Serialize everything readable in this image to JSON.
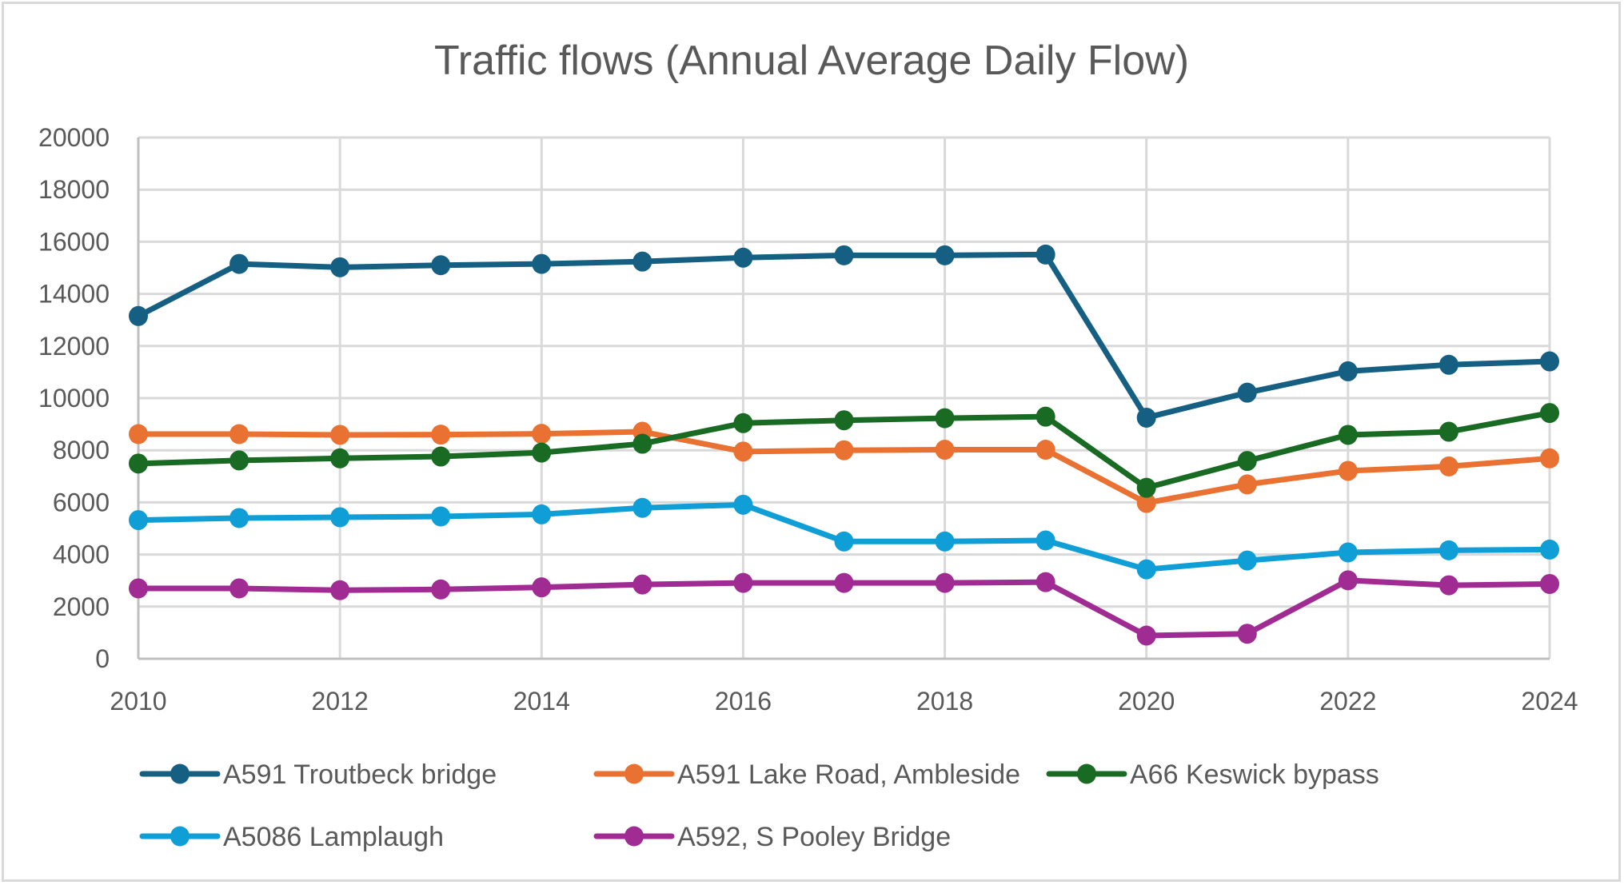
{
  "chart_data": {
    "type": "line",
    "title": "Traffic flows (Annual Average Daily Flow)",
    "xlabel": "",
    "ylabel": "",
    "x": [
      2010,
      2011,
      2012,
      2013,
      2014,
      2015,
      2016,
      2017,
      2018,
      2019,
      2020,
      2021,
      2022,
      2023,
      2024
    ],
    "xlim": [
      2010,
      2024
    ],
    "x_ticks": [
      "2010",
      "2012",
      "2014",
      "2016",
      "2018",
      "2020",
      "2022",
      "2024"
    ],
    "x_tick_values": [
      2010,
      2012,
      2014,
      2016,
      2018,
      2020,
      2022,
      2024
    ],
    "ylim": [
      0,
      20000
    ],
    "y_ticks": [
      "0",
      "2000",
      "4000",
      "6000",
      "8000",
      "10000",
      "12000",
      "14000",
      "16000",
      "18000",
      "20000"
    ],
    "y_tick_values": [
      0,
      2000,
      4000,
      6000,
      8000,
      10000,
      12000,
      14000,
      16000,
      18000,
      20000
    ],
    "grid": true,
    "legend_position": "bottom",
    "markers": true,
    "series": [
      {
        "name": "A591 Troutbeck bridge",
        "color": "#156082",
        "values": [
          13150,
          15150,
          15020,
          15100,
          15150,
          15240,
          15390,
          15480,
          15480,
          15510,
          9250,
          10210,
          11030,
          11280,
          11410
        ]
      },
      {
        "name": "A591 Lake Road, Ambleside",
        "color": "#E97132",
        "values": [
          8620,
          8620,
          8590,
          8600,
          8630,
          8710,
          7950,
          8000,
          8020,
          8020,
          5980,
          6690,
          7210,
          7380,
          7690
        ]
      },
      {
        "name": "A66 Keswick bypass",
        "color": "#196B24",
        "values": [
          7490,
          7610,
          7690,
          7760,
          7910,
          8250,
          9040,
          9150,
          9230,
          9290,
          6560,
          7590,
          8590,
          8710,
          9430
        ]
      },
      {
        "name": "A5086 Lamplaugh",
        "color": "#0F9ED5",
        "values": [
          5320,
          5400,
          5430,
          5460,
          5540,
          5790,
          5910,
          4500,
          4500,
          4540,
          3430,
          3770,
          4080,
          4160,
          4190
        ]
      },
      {
        "name": "A592, S Pooley Bridge",
        "color": "#A02B93",
        "values": [
          2700,
          2700,
          2630,
          2660,
          2740,
          2850,
          2910,
          2910,
          2910,
          2940,
          890,
          960,
          3010,
          2820,
          2870
        ]
      }
    ]
  }
}
